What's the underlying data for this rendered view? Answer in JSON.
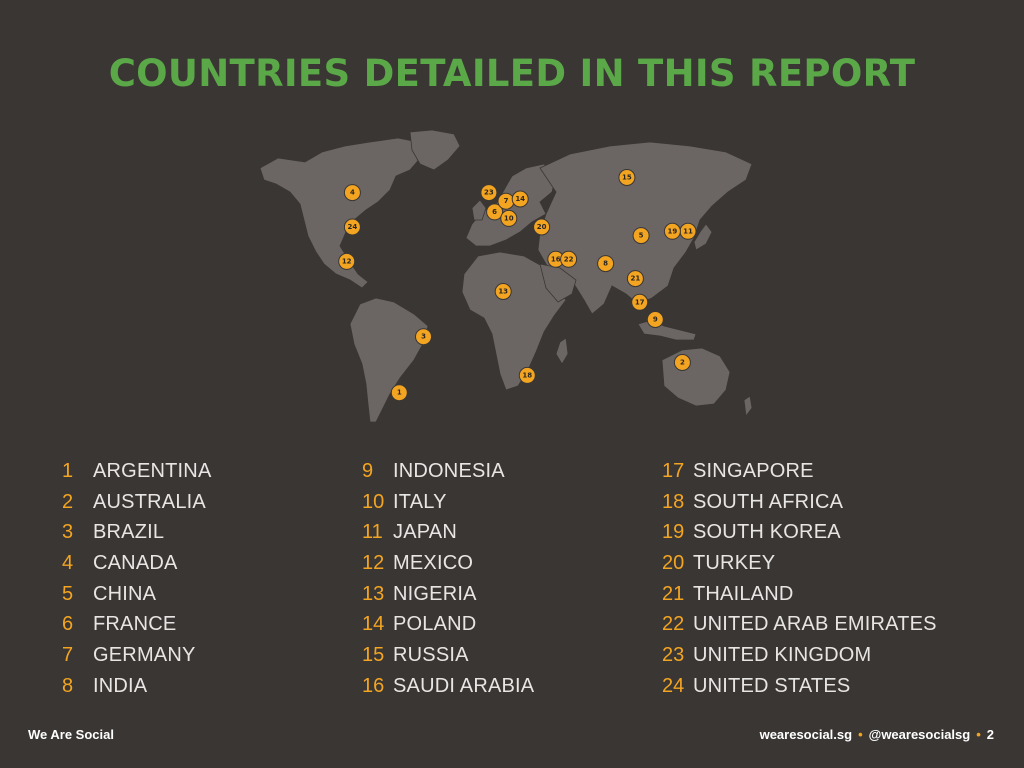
{
  "title": "COUNTRIES DETAILED IN THIS REPORT",
  "colors": {
    "background": "#3a3634",
    "title": "#5aa847",
    "land": "#6b6663",
    "marker": "#f3a521",
    "number": "#f3a521",
    "text": "#e8e6e4"
  },
  "map": {
    "markers": [
      {
        "num": "1",
        "country": "Argentina",
        "lat": -38,
        "lon": -65
      },
      {
        "num": "2",
        "country": "Australia",
        "lat": -24,
        "lon": 134
      },
      {
        "num": "3",
        "country": "Brazil",
        "lat": -12,
        "lon": -48
      },
      {
        "num": "4",
        "country": "Canada",
        "lat": 55,
        "lon": -98
      },
      {
        "num": "5",
        "country": "China",
        "lat": 35,
        "lon": 105
      },
      {
        "num": "6",
        "country": "France",
        "lat": 46,
        "lon": 2
      },
      {
        "num": "7",
        "country": "Germany",
        "lat": 51,
        "lon": 10
      },
      {
        "num": "8",
        "country": "India",
        "lat": 22,
        "lon": 80
      },
      {
        "num": "9",
        "country": "Indonesia",
        "lat": -4,
        "lon": 115
      },
      {
        "num": "10",
        "country": "Italy",
        "lat": 43,
        "lon": 12
      },
      {
        "num": "11",
        "country": "Japan",
        "lat": 37,
        "lon": 138
      },
      {
        "num": "12",
        "country": "Mexico",
        "lat": 23,
        "lon": -102
      },
      {
        "num": "13",
        "country": "Nigeria",
        "lat": 9,
        "lon": 8
      },
      {
        "num": "14",
        "country": "Poland",
        "lat": 52,
        "lon": 20
      },
      {
        "num": "15",
        "country": "Russia",
        "lat": 62,
        "lon": 95
      },
      {
        "num": "16",
        "country": "Saudi Arabia",
        "lat": 24,
        "lon": 45
      },
      {
        "num": "17",
        "country": "Singapore",
        "lat": 4,
        "lon": 104
      },
      {
        "num": "18",
        "country": "South Africa",
        "lat": -30,
        "lon": 25
      },
      {
        "num": "19",
        "country": "South Korea",
        "lat": 37,
        "lon": 127
      },
      {
        "num": "20",
        "country": "Turkey",
        "lat": 39,
        "lon": 35
      },
      {
        "num": "21",
        "country": "Thailand",
        "lat": 15,
        "lon": 101
      },
      {
        "num": "22",
        "country": "United Arab Emirates",
        "lat": 24,
        "lon": 54
      },
      {
        "num": "23",
        "country": "United Kingdom",
        "lat": 55,
        "lon": -2
      },
      {
        "num": "24",
        "country": "United States",
        "lat": 39,
        "lon": -98
      }
    ]
  },
  "list": [
    [
      {
        "num": "1",
        "name": "ARGENTINA"
      },
      {
        "num": "2",
        "name": "AUSTRALIA"
      },
      {
        "num": "3",
        "name": "BRAZIL"
      },
      {
        "num": "4",
        "name": "CANADA"
      },
      {
        "num": "5",
        "name": "CHINA"
      },
      {
        "num": "6",
        "name": "FRANCE"
      },
      {
        "num": "7",
        "name": "GERMANY"
      },
      {
        "num": "8",
        "name": "INDIA"
      }
    ],
    [
      {
        "num": "9",
        "name": "INDONESIA"
      },
      {
        "num": "10",
        "name": "ITALY"
      },
      {
        "num": "11",
        "name": "JAPAN"
      },
      {
        "num": "12",
        "name": "MEXICO"
      },
      {
        "num": "13",
        "name": "NIGERIA"
      },
      {
        "num": "14",
        "name": "POLAND"
      },
      {
        "num": "15",
        "name": "RUSSIA"
      },
      {
        "num": "16",
        "name": "SAUDI ARABIA"
      }
    ],
    [
      {
        "num": "17",
        "name": "SINGAPORE"
      },
      {
        "num": "18",
        "name": "SOUTH AFRICA"
      },
      {
        "num": "19",
        "name": "SOUTH KOREA"
      },
      {
        "num": "20",
        "name": "TURKEY"
      },
      {
        "num": "21",
        "name": "THAILAND"
      },
      {
        "num": "22",
        "name": "UNITED ARAB EMIRATES"
      },
      {
        "num": "23",
        "name": "UNITED KINGDOM"
      },
      {
        "num": "24",
        "name": "UNITED STATES"
      }
    ]
  ],
  "footer": {
    "brand": "We Are Social",
    "website": "wearesocial.sg",
    "separator": "•",
    "handle": "@wearesocialsg",
    "page": "2"
  }
}
